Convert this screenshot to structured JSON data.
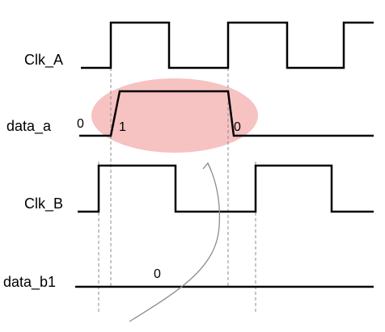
{
  "signals": {
    "clk_a": "Clk_A",
    "data_a": "data_a",
    "clk_b": "Clk_B",
    "data_b1": "data_b1"
  },
  "values": {
    "data_a_before": "0",
    "data_a_high": "1",
    "data_a_after": "0",
    "data_b1_value": "0"
  },
  "colors": {
    "highlight": "#f6b7b7",
    "waveform": "#000000",
    "guide": "#8c8c8c"
  }
}
